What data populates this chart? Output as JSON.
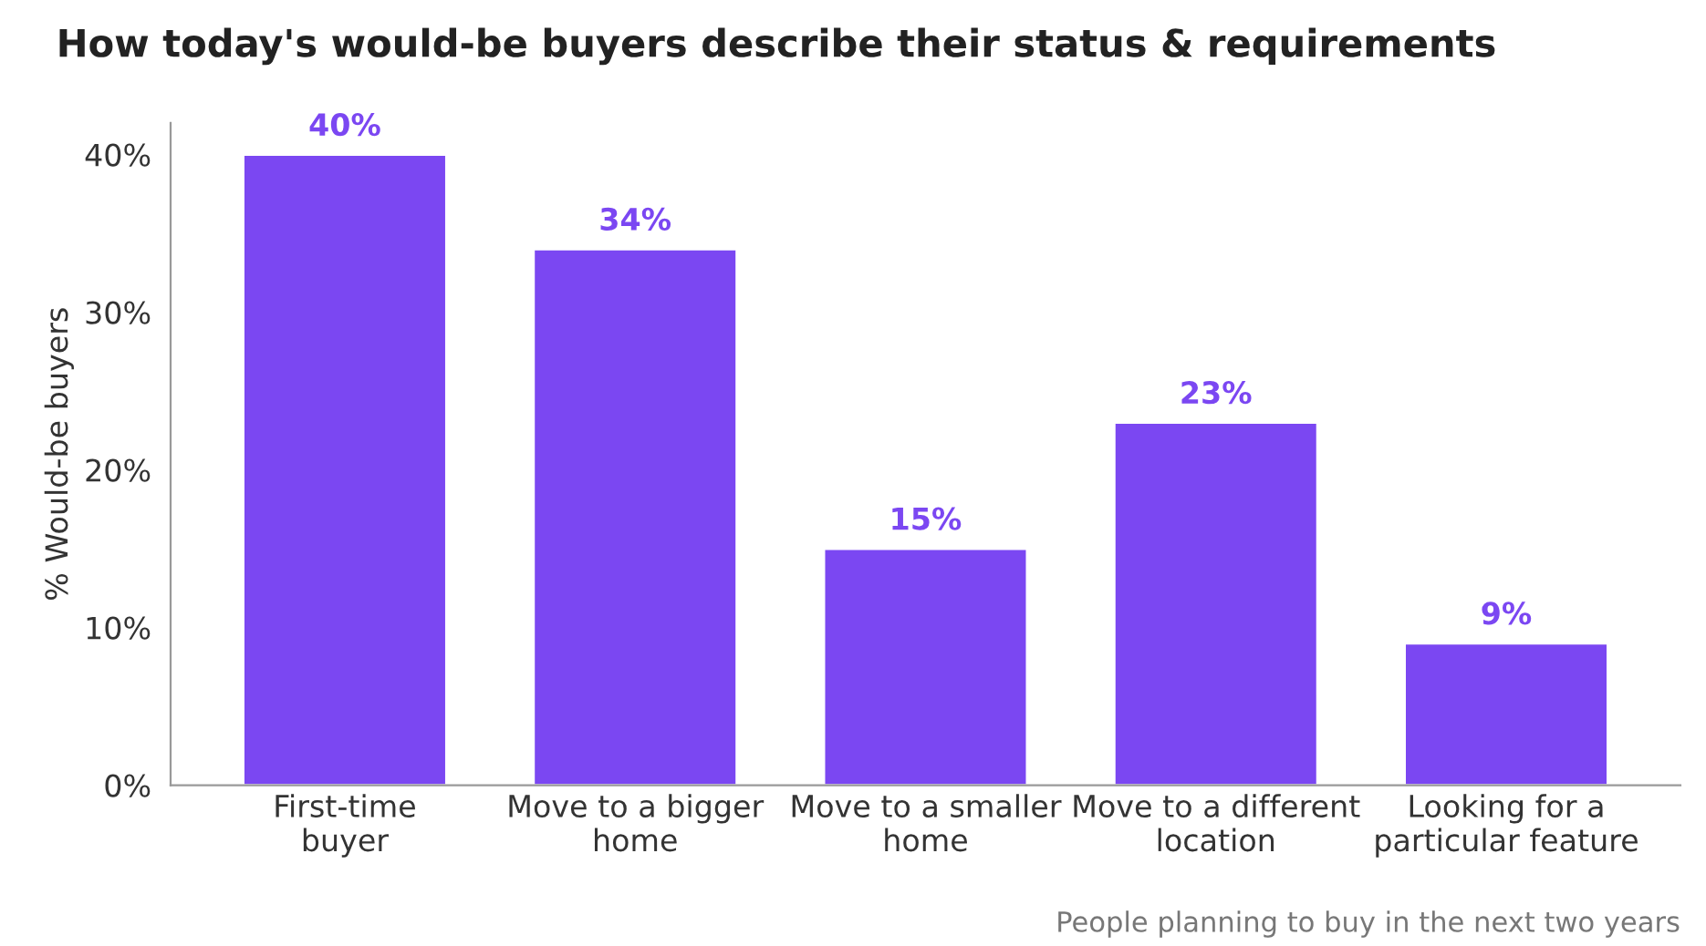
{
  "chart_data": {
    "type": "bar",
    "title": "How today's would-be buyers describe their status & requirements",
    "ylabel": "% Would-be buyers",
    "categories": [
      "First-time\nbuyer",
      "Move to a bigger\nhome",
      "Move to a smaller\nhome",
      "Move to a different\nlocation",
      "Looking for a\nparticular feature"
    ],
    "values": [
      40,
      34,
      15,
      23,
      9
    ],
    "value_labels": [
      "40%",
      "34%",
      "15%",
      "23%",
      "9%"
    ],
    "color": "#7b47f2",
    "ylim": [
      0,
      42
    ],
    "yticks": [
      {
        "value": 0,
        "label": "0%"
      },
      {
        "value": 10,
        "label": "10%"
      },
      {
        "value": 20,
        "label": "20%"
      },
      {
        "value": 30,
        "label": "30%"
      },
      {
        "value": 40,
        "label": "40%"
      }
    ],
    "grid": false,
    "annotations": [
      "People planning to buy in the next two years"
    ]
  }
}
